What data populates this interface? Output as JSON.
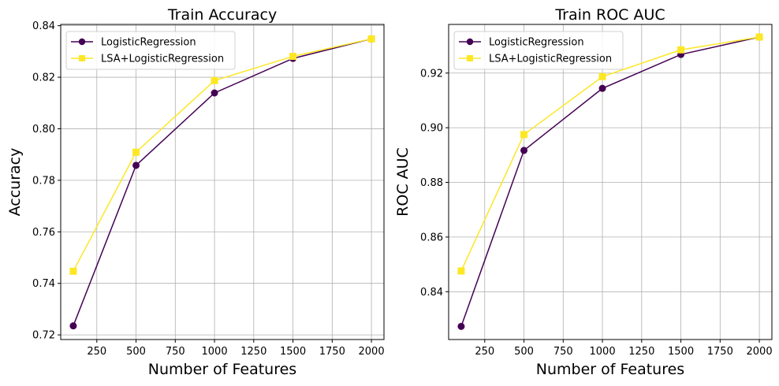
{
  "chart_data": [
    {
      "type": "line",
      "title": "Train Accuracy",
      "xlabel": "Number of Features",
      "ylabel": "Accuracy",
      "x": [
        100,
        500,
        1000,
        1500,
        2000
      ],
      "xlim": [
        20,
        2080
      ],
      "ylim": [
        0.7182,
        0.8405
      ],
      "xticks": [
        250,
        500,
        750,
        1000,
        1250,
        1500,
        1750,
        2000
      ],
      "yticks": [
        0.72,
        0.74,
        0.76,
        0.78,
        0.8,
        0.82,
        0.84
      ],
      "xtick_labels": [
        "250",
        "500",
        "750",
        "1000",
        "1250",
        "1500",
        "1750",
        "2000"
      ],
      "ytick_labels": [
        "0.72",
        "0.74",
        "0.76",
        "0.78",
        "0.80",
        "0.82",
        "0.84"
      ],
      "grid": true,
      "legend_position": "top-left",
      "series": [
        {
          "name": "LogisticRegression",
          "values": [
            0.7235,
            0.7858,
            0.8139,
            0.8273,
            0.8349
          ],
          "color": "#440154",
          "marker": "circle"
        },
        {
          "name": "LSA+LogisticRegression",
          "values": [
            0.7447,
            0.7909,
            0.8187,
            0.8281,
            0.8349
          ],
          "color": "#fde725",
          "marker": "square"
        }
      ]
    },
    {
      "type": "line",
      "title": "Train ROC AUC",
      "xlabel": "Number of Features",
      "ylabel": "ROC AUC",
      "x": [
        100,
        500,
        1000,
        1500,
        2000
      ],
      "xlim": [
        20,
        2080
      ],
      "ylim": [
        0.8225,
        0.9378
      ],
      "xticks": [
        250,
        500,
        750,
        1000,
        1250,
        1500,
        1750,
        2000
      ],
      "yticks": [
        0.84,
        0.86,
        0.88,
        0.9,
        0.92
      ],
      "xtick_labels": [
        "250",
        "500",
        "750",
        "1000",
        "1250",
        "1500",
        "1750",
        "2000"
      ],
      "ytick_labels": [
        "0.84",
        "0.86",
        "0.88",
        "0.90",
        "0.92"
      ],
      "grid": true,
      "legend_position": "top-left",
      "series": [
        {
          "name": "LogisticRegression",
          "values": [
            0.8273,
            0.8917,
            0.9144,
            0.9268,
            0.9332
          ],
          "color": "#440154",
          "marker": "circle"
        },
        {
          "name": "LSA+LogisticRegression",
          "values": [
            0.8476,
            0.8975,
            0.9187,
            0.9285,
            0.9332
          ],
          "color": "#fde725",
          "marker": "square"
        }
      ]
    }
  ]
}
